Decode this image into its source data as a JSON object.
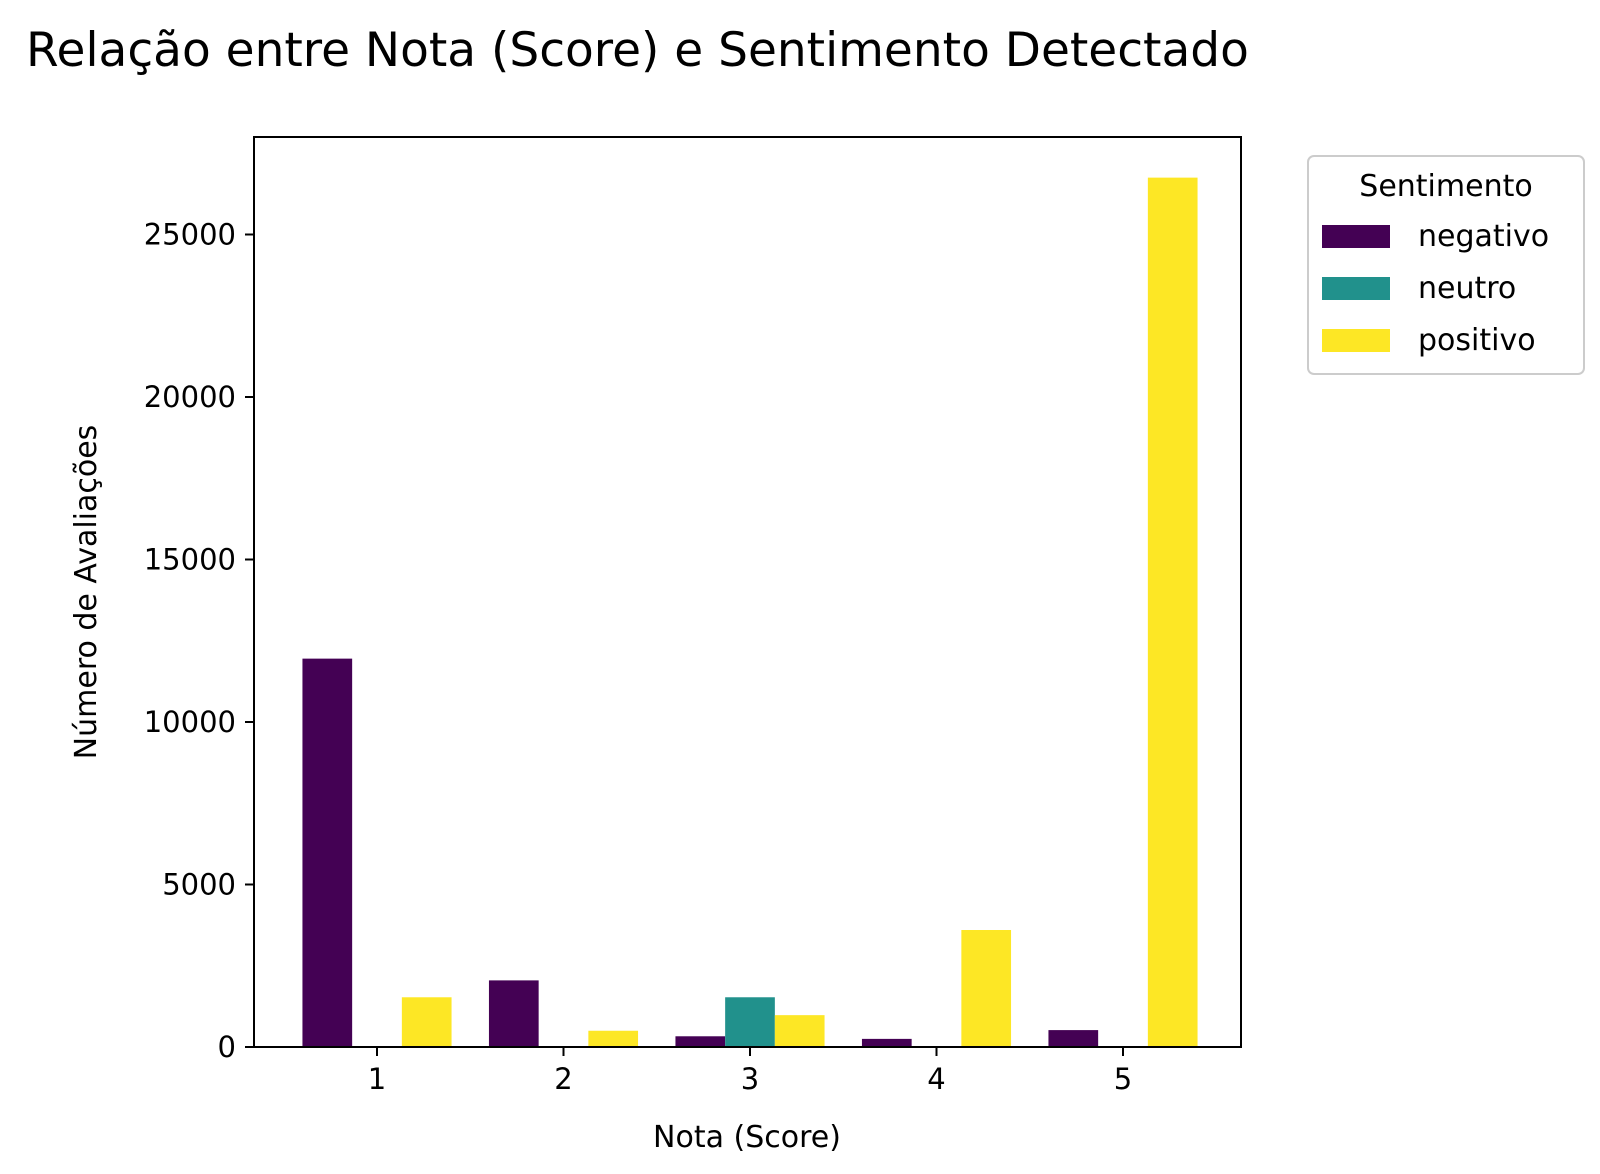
{
  "chart_data": {
    "type": "bar",
    "title": "Relação entre Nota (Score) e Sentimento Detectado",
    "xlabel": "Nota (Score)",
    "ylabel": "Número de Avaliações",
    "categories": [
      "1",
      "2",
      "3",
      "4",
      "5"
    ],
    "ylim": [
      0,
      28000
    ],
    "yticks": [
      0,
      5000,
      10000,
      15000,
      20000,
      25000
    ],
    "grid": false,
    "legend": {
      "title": "Sentimento",
      "placement": "outside-top-right"
    },
    "series": [
      {
        "name": "negativo",
        "color": "#440154",
        "values": [
          11950,
          2050,
          330,
          250,
          520
        ]
      },
      {
        "name": "neutro",
        "color": "#21918c",
        "values": [
          0,
          0,
          1530,
          0,
          0
        ]
      },
      {
        "name": "positivo",
        "color": "#fde725",
        "values": [
          1530,
          500,
          980,
          3600,
          26750
        ]
      }
    ]
  }
}
